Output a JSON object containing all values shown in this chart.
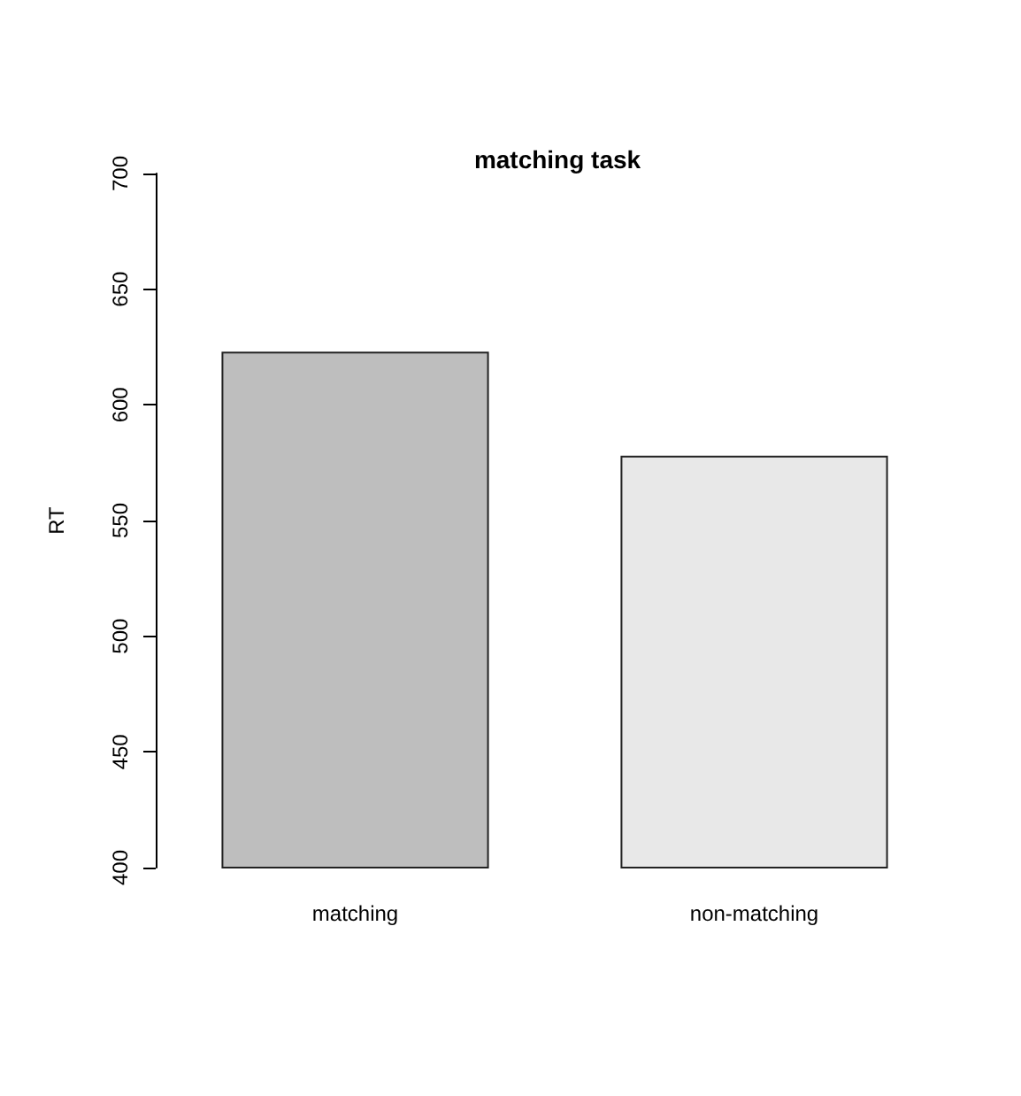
{
  "chart_data": {
    "type": "bar",
    "title": "matching task",
    "ylabel": "RT",
    "categories": [
      "matching",
      "non-matching"
    ],
    "values": [
      623,
      578
    ],
    "colors": [
      "#bebebe",
      "#e8e8e8"
    ],
    "ylim": [
      400,
      700
    ],
    "yticks": [
      400,
      450,
      500,
      550,
      600,
      650,
      700
    ]
  }
}
